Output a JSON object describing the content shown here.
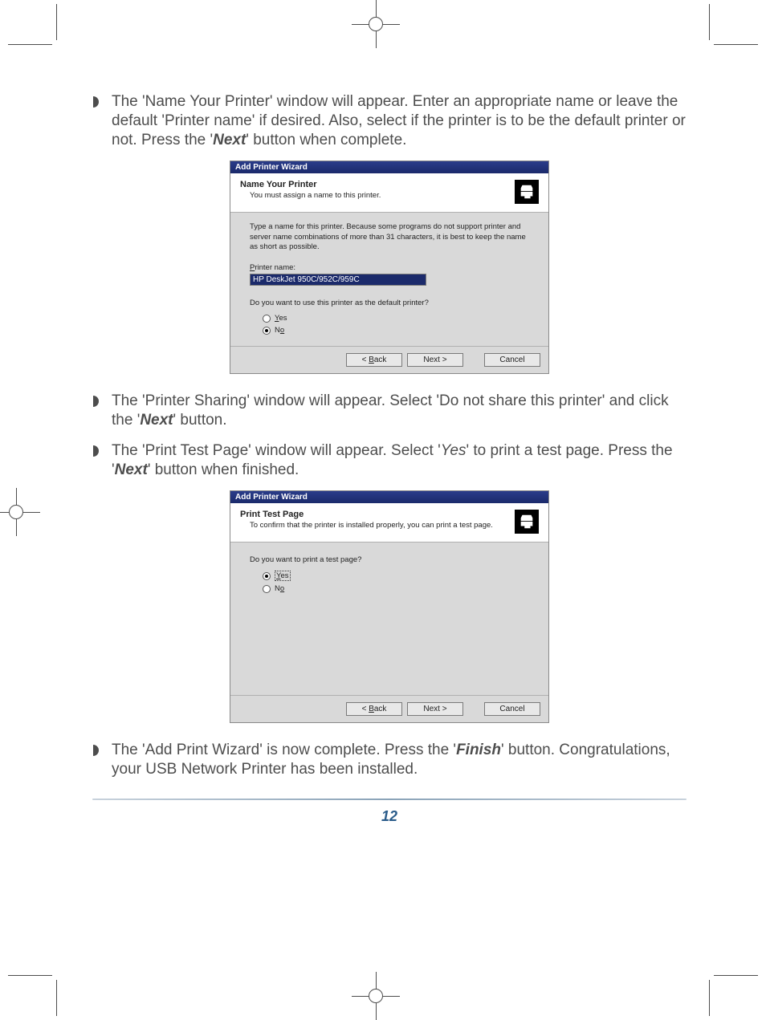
{
  "page_number": "12",
  "bullets": {
    "b1_pre": "The 'Name Your Printer' window will appear.  Enter an appropriate name or leave the default 'Printer name' if desired.  Also, select if the printer is to be the default printer or not.  Press the '",
    "b1_bold": "Next",
    "b1_post": "' button when complete.",
    "b2_pre": "The 'Printer Sharing' window will appear.  Select 'Do not share this printer' and click the '",
    "b2_bold": "Next",
    "b2_post": "' button.",
    "b3_pre": "The 'Print Test Page' window will appear.  Select '",
    "b3_ital": "Yes",
    "b3_mid": "' to print a test page.  Press the '",
    "b3_bold": "Next",
    "b3_post": "' button when finished.",
    "b4_pre": "The 'Add Print Wizard' is now complete.  Press the '",
    "b4_bold": "Finish",
    "b4_post": "' button. Congratulations, your USB Network Printer has been installed."
  },
  "wizard1": {
    "titlebar": "Add Printer Wizard",
    "header_title": "Name Your Printer",
    "header_sub": "You must assign a name to this printer.",
    "desc": "Type a name for this printer. Because some programs do not support printer and server name combinations of more than 31 characters, it is best to keep the name as short as possible.",
    "field_label_u": "P",
    "field_label_rest": "rinter name:",
    "printer_name": "HP DeskJet 950C/952C/959C",
    "question": "Do you want to use this printer as the default printer?",
    "radio_yes_u": "Y",
    "radio_yes_rest": "es",
    "radio_no_u": "o",
    "radio_no_pre": "N",
    "btn_back": "< Back",
    "btn_next_u": "N",
    "btn_next_rest": "ext >",
    "btn_cancel": "Cancel"
  },
  "wizard2": {
    "titlebar": "Add Printer Wizard",
    "header_title": "Print Test Page",
    "header_sub": "To confirm that the printer is installed properly, you can print a test page.",
    "question": "Do you want to print a test page?",
    "radio_yes_u": "Y",
    "radio_yes_rest": "es",
    "radio_no_u": "o",
    "radio_no_pre": "N",
    "btn_back": "< Back",
    "btn_next_u": "N",
    "btn_next_rest": "ext >",
    "btn_cancel": "Cancel"
  }
}
